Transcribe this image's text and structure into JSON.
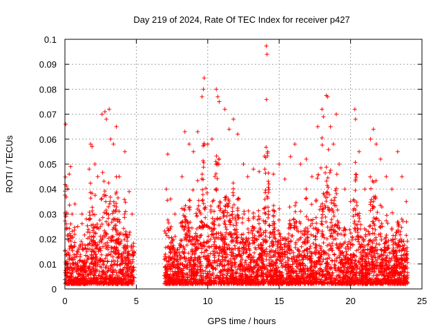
{
  "chart_data": {
    "type": "scatter",
    "title": "Day 219 of 2024, Rate Of TEC Index for receiver p427",
    "xlabel": "GPS time / hours",
    "ylabel": "ROTI / TECUs",
    "xlim": [
      0,
      25
    ],
    "ylim": [
      0,
      0.1
    ],
    "xticks": [
      0,
      5,
      10,
      15,
      20,
      25
    ],
    "xtick_labels": [
      "0",
      "5",
      "10",
      "15",
      "20",
      "25"
    ],
    "yticks": [
      0,
      0.01,
      0.02,
      0.03,
      0.04,
      0.05,
      0.06,
      0.07,
      0.08,
      0.09,
      0.1
    ],
    "ytick_labels": [
      "0",
      "0.01",
      "0.02",
      "0.03",
      "0.04",
      "0.05",
      "0.06",
      "0.07",
      "0.08",
      "0.09",
      "0.1"
    ],
    "grid": true,
    "marker": "+",
    "color": "#ff0000",
    "data_gap_hours": [
      4.85,
      6.95
    ],
    "series": [
      {
        "name": "ROTI",
        "points": [
          [
            0.05,
            0.066
          ],
          [
            0.1,
            0.024
          ],
          [
            0.2,
            0.04
          ],
          [
            0.3,
            0.046
          ],
          [
            0.4,
            0.049
          ],
          [
            0.5,
            0.03
          ],
          [
            0.7,
            0.034
          ],
          [
            0.9,
            0.025
          ],
          [
            1.2,
            0.03
          ],
          [
            1.5,
            0.028
          ],
          [
            1.7,
            0.048
          ],
          [
            1.8,
            0.058
          ],
          [
            1.9,
            0.057
          ],
          [
            2.1,
            0.05
          ],
          [
            2.3,
            0.045
          ],
          [
            2.6,
            0.07
          ],
          [
            2.8,
            0.071
          ],
          [
            2.9,
            0.068
          ],
          [
            3.1,
            0.072
          ],
          [
            3.2,
            0.06
          ],
          [
            3.4,
            0.058
          ],
          [
            3.6,
            0.065
          ],
          [
            3.8,
            0.045
          ],
          [
            4.2,
            0.055
          ],
          [
            4.5,
            0.039
          ],
          [
            4.7,
            0.03
          ],
          [
            7.1,
            0.04
          ],
          [
            7.2,
            0.054
          ],
          [
            7.4,
            0.036
          ],
          [
            7.7,
            0.03
          ],
          [
            8.2,
            0.045
          ],
          [
            8.4,
            0.063
          ],
          [
            8.7,
            0.058
          ],
          [
            9.0,
            0.055
          ],
          [
            9.3,
            0.063
          ],
          [
            9.6,
            0.077
          ],
          [
            9.7,
            0.08
          ],
          [
            9.75,
            0.0845
          ],
          [
            10.0,
            0.058
          ],
          [
            10.3,
            0.06
          ],
          [
            10.6,
            0.08
          ],
          [
            10.7,
            0.077
          ],
          [
            10.8,
            0.075
          ],
          [
            11.2,
            0.072
          ],
          [
            11.5,
            0.064
          ],
          [
            11.8,
            0.068
          ],
          [
            12.1,
            0.062
          ],
          [
            12.5,
            0.05
          ],
          [
            12.8,
            0.045
          ],
          [
            13.2,
            0.048
          ],
          [
            13.6,
            0.047
          ],
          [
            14.0,
            0.048
          ],
          [
            14.1,
            0.0973
          ],
          [
            14.15,
            0.094
          ],
          [
            14.2,
            0.055
          ],
          [
            14.6,
            0.046
          ],
          [
            15.0,
            0.05
          ],
          [
            15.4,
            0.044
          ],
          [
            15.8,
            0.053
          ],
          [
            16.1,
            0.058
          ],
          [
            16.5,
            0.05
          ],
          [
            16.9,
            0.052
          ],
          [
            17.3,
            0.045
          ],
          [
            17.7,
            0.065
          ],
          [
            18.0,
            0.072
          ],
          [
            18.1,
            0.069
          ],
          [
            18.3,
            0.0775
          ],
          [
            18.4,
            0.077
          ],
          [
            18.6,
            0.065
          ],
          [
            18.8,
            0.058
          ],
          [
            19.0,
            0.07
          ],
          [
            19.2,
            0.05
          ],
          [
            19.6,
            0.04
          ],
          [
            20.0,
            0.035
          ],
          [
            20.3,
            0.072
          ],
          [
            20.35,
            0.068
          ],
          [
            20.6,
            0.055
          ],
          [
            21.0,
            0.04
          ],
          [
            21.4,
            0.06
          ],
          [
            21.6,
            0.064
          ],
          [
            21.8,
            0.058
          ],
          [
            22.1,
            0.052
          ],
          [
            22.5,
            0.045
          ],
          [
            22.9,
            0.04
          ],
          [
            23.3,
            0.055
          ],
          [
            23.6,
            0.045
          ],
          [
            23.9,
            0.035
          ]
        ]
      }
    ]
  }
}
